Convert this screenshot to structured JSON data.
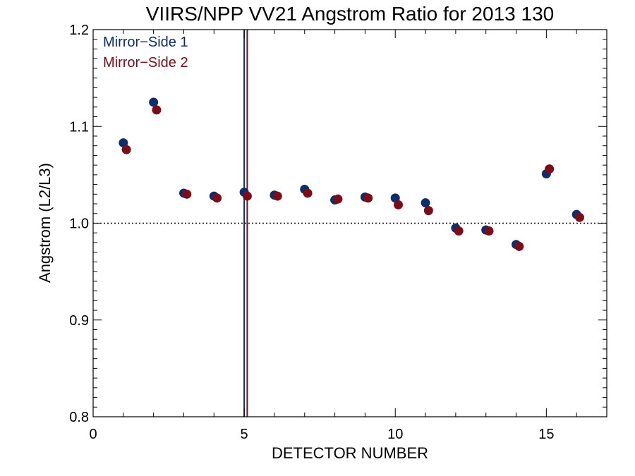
{
  "chart_data": {
    "type": "scatter",
    "title": "VIIRS/NPP VV21 Angstrom Ratio for 2013 130",
    "xlabel": "DETECTOR NUMBER",
    "ylabel": "Angstrom (L2/L3)",
    "xlim": [
      0,
      17
    ],
    "ylim": [
      0.8,
      1.2
    ],
    "xticks": [
      0,
      5,
      10,
      15
    ],
    "yticks": [
      0.8,
      0.9,
      1.0,
      1.1,
      1.2
    ],
    "xtick_labels": [
      "0",
      "5",
      "10",
      "15"
    ],
    "ytick_labels": [
      "0.8",
      "0.9",
      "1.0",
      "1.1",
      "1.2"
    ],
    "reference_line": {
      "y": 1.0,
      "style": "dotted",
      "color": "#000000"
    },
    "legend_position": "top-left",
    "series": [
      {
        "name": "Mirror−Side 1",
        "color": "#0d2d6b",
        "marker_line_x": 5.0,
        "x": [
          1,
          2,
          3,
          4,
          5,
          6,
          7,
          8,
          9,
          10,
          11,
          12,
          13,
          14,
          15,
          16
        ],
        "y": [
          1.083,
          1.125,
          1.031,
          1.028,
          1.032,
          1.029,
          1.035,
          1.024,
          1.027,
          1.026,
          1.021,
          0.995,
          0.993,
          0.978,
          1.051,
          1.009
        ]
      },
      {
        "name": "Mirror−Side 2",
        "color": "#7a0d17",
        "marker_line_x": 5.1,
        "x": [
          1.1,
          2.1,
          3.1,
          4.1,
          5.1,
          6.1,
          7.1,
          8.1,
          9.1,
          10.1,
          11.1,
          12.1,
          13.1,
          14.1,
          15.1,
          16.1
        ],
        "y": [
          1.076,
          1.117,
          1.03,
          1.026,
          1.028,
          1.028,
          1.031,
          1.025,
          1.026,
          1.019,
          1.013,
          0.992,
          0.992,
          0.976,
          1.056,
          1.006
        ]
      }
    ]
  }
}
